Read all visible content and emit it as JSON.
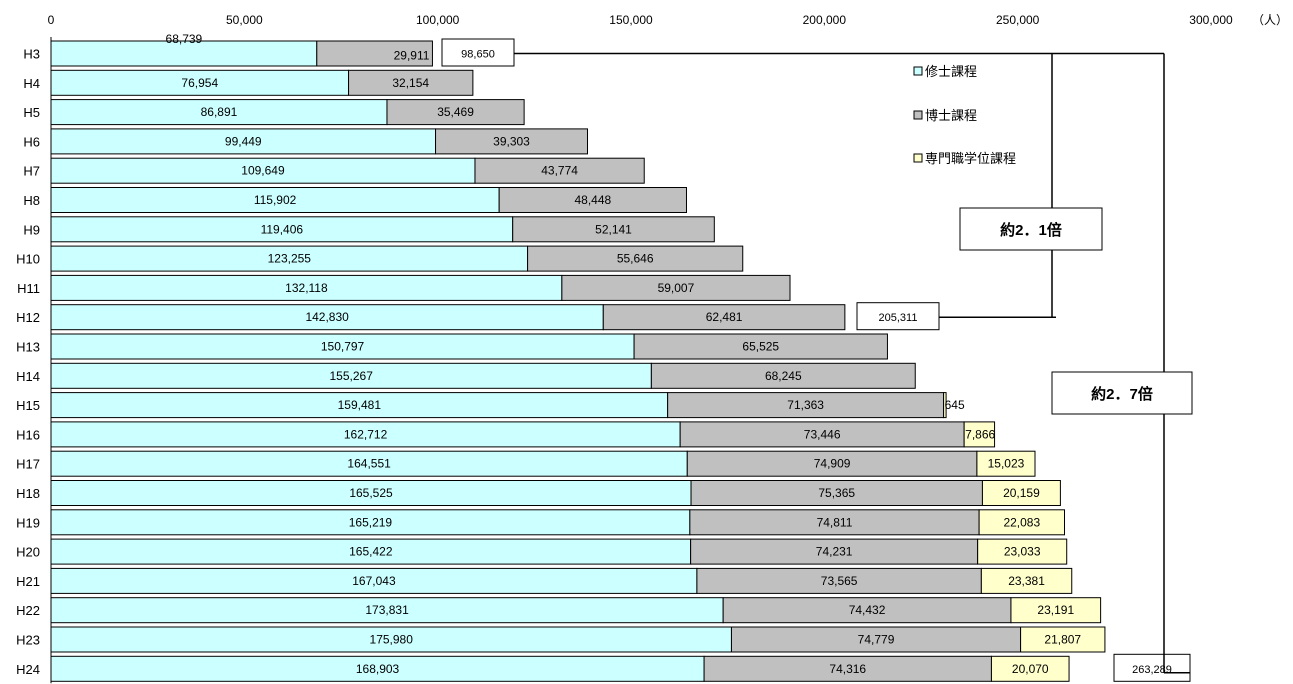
{
  "chart_data": {
    "type": "bar",
    "orientation": "horizontal",
    "stacked": true,
    "unit": "（人）",
    "xlim": [
      0,
      300000
    ],
    "x_ticks": [
      0,
      50000,
      100000,
      150000,
      200000,
      250000,
      300000
    ],
    "x_tick_labels": [
      "0",
      "50,000",
      "100,000",
      "150,000",
      "200,000",
      "250,000",
      "300,000"
    ],
    "grid": false,
    "legend_position": "right",
    "categories": [
      "H3",
      "H4",
      "H5",
      "H6",
      "H7",
      "H8",
      "H9",
      "H10",
      "H11",
      "H12",
      "H13",
      "H14",
      "H15",
      "H16",
      "H17",
      "H18",
      "H19",
      "H20",
      "H21",
      "H22",
      "H23",
      "H24"
    ],
    "series": [
      {
        "name": "修士課程",
        "color": "#ccffff",
        "values": [
          68739,
          76954,
          86891,
          99449,
          109649,
          115902,
          119406,
          123255,
          132118,
          142830,
          150797,
          155267,
          159481,
          162712,
          164551,
          165525,
          165219,
          165422,
          167043,
          173831,
          175980,
          168903
        ],
        "labels": [
          "68,739",
          "76,954",
          "86,891",
          "99,449",
          "109,649",
          "115,902",
          "119,406",
          "123,255",
          "132,118",
          "142,830",
          "150,797",
          "155,267",
          "159,481",
          "162,712",
          "164,551",
          "165,525",
          "165,219",
          "165,422",
          "167,043",
          "173,831",
          "175,980",
          "168,903"
        ]
      },
      {
        "name": "博士課程",
        "color": "#c0c0c0",
        "values": [
          29911,
          32154,
          35469,
          39303,
          43774,
          48448,
          52141,
          55646,
          59007,
          62481,
          65525,
          68245,
          71363,
          73446,
          74909,
          75365,
          74811,
          74231,
          73565,
          74432,
          74779,
          74316
        ],
        "labels": [
          "29,911",
          "32,154",
          "35,469",
          "39,303",
          "43,774",
          "48,448",
          "52,141",
          "55,646",
          "59,007",
          "62,481",
          "65,525",
          "68,245",
          "71,363",
          "73,446",
          "74,909",
          "75,365",
          "74,811",
          "74,231",
          "73,565",
          "74,432",
          "74,779",
          "74,316"
        ]
      },
      {
        "name": "専門職学位課程",
        "color": "#ffffcc",
        "values": [
          0,
          0,
          0,
          0,
          0,
          0,
          0,
          0,
          0,
          0,
          0,
          0,
          645,
          7866,
          15023,
          20159,
          22083,
          23033,
          23381,
          23191,
          21807,
          20070
        ],
        "labels": [
          "",
          "",
          "",
          "",
          "",
          "",
          "",
          "",
          "",
          "",
          "",
          "",
          "645",
          "7,866",
          "15,023",
          "20,159",
          "22,083",
          "23,033",
          "23,381",
          "23,191",
          "21,807",
          "20,070"
        ]
      }
    ],
    "totals": {
      "H3": "98,650",
      "H12": "205,311",
      "H24": "263,289"
    },
    "annotations": [
      "約2．1倍",
      "約2．7倍"
    ]
  }
}
